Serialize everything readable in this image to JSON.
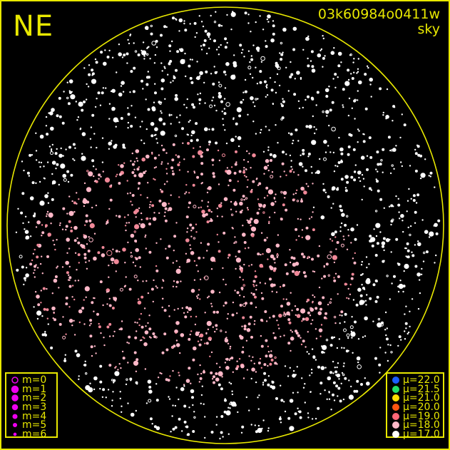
{
  "header": {
    "direction": "NE",
    "image_id": "03k60984o0411w",
    "subtitle": "sky"
  },
  "colors": {
    "frame": "#e8e800",
    "magnitude_symbol": "#ee00ee"
  },
  "magnitude_legend": [
    {
      "label": "m=0",
      "style": "ring"
    },
    {
      "label": "m=1",
      "style": "dot"
    },
    {
      "label": "m=2",
      "style": "dot"
    },
    {
      "label": "m=3",
      "style": "dot"
    },
    {
      "label": "m=4",
      "style": "dot"
    },
    {
      "label": "m=5",
      "style": "dot"
    },
    {
      "label": "m=6",
      "style": "dot"
    }
  ],
  "sky_brightness_legend": [
    {
      "label": "μ=22.0",
      "color": "#1a5cff"
    },
    {
      "label": "μ=21.5",
      "color": "#22dd66"
    },
    {
      "label": "μ=21.0",
      "color": "#ffdd00"
    },
    {
      "label": "μ=20.0",
      "color": "#ff5511"
    },
    {
      "label": "μ=19.0",
      "color": "#ff6677"
    },
    {
      "label": "μ=18.0",
      "color": "#ffb8c8"
    },
    {
      "label": "μ=17.0",
      "color": "#ffffff"
    }
  ]
}
